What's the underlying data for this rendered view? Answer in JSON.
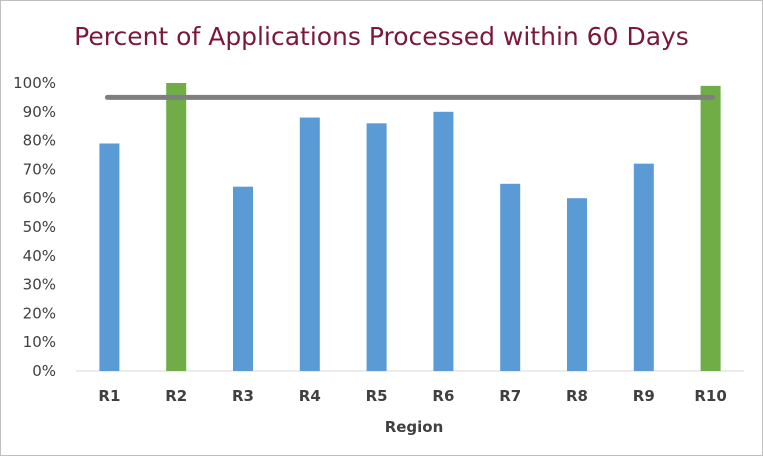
{
  "chart_data": {
    "type": "bar",
    "title": "Percent of Applications Processed within 60 Days",
    "xlabel": "Region",
    "ylabel": "",
    "categories": [
      "R1",
      "R2",
      "R3",
      "R4",
      "R5",
      "R6",
      "R7",
      "R8",
      "R9",
      "R10"
    ],
    "values": [
      79,
      100,
      64,
      88,
      86,
      90,
      65,
      60,
      72,
      99
    ],
    "bar_colors": [
      "#5b9bd5",
      "#70ad47",
      "#5b9bd5",
      "#5b9bd5",
      "#5b9bd5",
      "#5b9bd5",
      "#5b9bd5",
      "#5b9bd5",
      "#5b9bd5",
      "#70ad47"
    ],
    "target_line": {
      "value": 95,
      "color": "#7f7f7f"
    },
    "ylim": [
      0,
      100
    ],
    "yticks": [
      "0%",
      "10%",
      "20%",
      "30%",
      "40%",
      "50%",
      "60%",
      "70%",
      "80%",
      "90%",
      "100%"
    ],
    "grid": false,
    "legend": "none"
  }
}
